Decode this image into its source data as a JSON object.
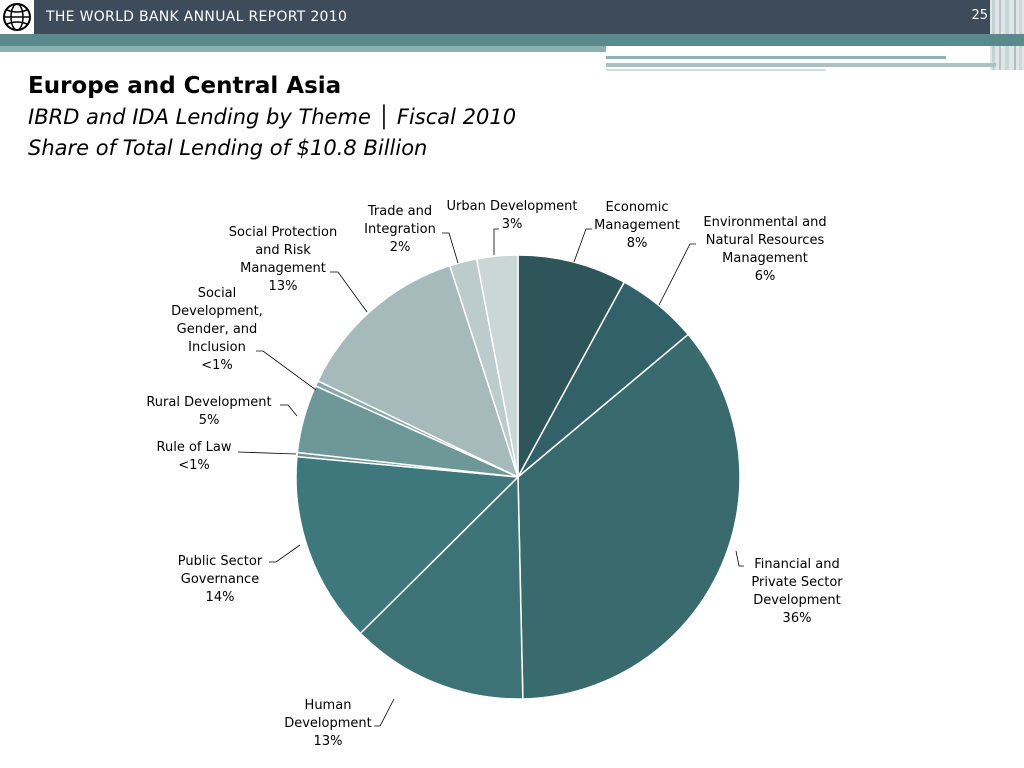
{
  "header": {
    "report_title": "THE WORLD BANK ANNUAL REPORT 2010",
    "page_number": "25",
    "bar_color": "#3d4b5a",
    "logo_icon": "world-bank-globe-icon"
  },
  "titles": {
    "line1": "Europe and Central Asia",
    "line2": "IBRD and IDA Lending by Theme │ Fiscal 2010",
    "line3": "Share of Total Lending of $10.8 Billion"
  },
  "chart_data": {
    "type": "pie",
    "title": "IBRD and IDA Lending by Theme │ Fiscal 2010",
    "total": "$10.8 Billion",
    "start_angle_deg": 0,
    "direction": "clockwise",
    "slices": [
      {
        "name": "Economic Management",
        "value": 8,
        "label_lines": [
          "Economic",
          "Management"
        ],
        "pct_label": "8%",
        "color": "#2e565a"
      },
      {
        "name": "Environmental and Natural Resources Management",
        "value": 6,
        "label_lines": [
          "Environmental and",
          "Natural Resources",
          "Management"
        ],
        "pct_label": "6%",
        "color": "#33616a"
      },
      {
        "name": "Financial and Private Sector Development",
        "value": 36,
        "label_lines": [
          "Financial and",
          "Private Sector",
          "Development"
        ],
        "pct_label": "36%",
        "color": "#386a6e"
      },
      {
        "name": "Human Development",
        "value": 13,
        "label_lines": [
          "Human",
          "Development"
        ],
        "pct_label": "13%",
        "color": "#3d7276"
      },
      {
        "name": "Public Sector Governance",
        "value": 14,
        "label_lines": [
          "Public Sector",
          "Governance"
        ],
        "pct_label": "14%",
        "color": "#3f787c"
      },
      {
        "name": "Rule of Law",
        "value": 0.3,
        "label_lines": [
          "Rule of Law"
        ],
        "pct_label": "<1%",
        "color": "#6b9597"
      },
      {
        "name": "Rural Development",
        "value": 5,
        "label_lines": [
          "Rural Development"
        ],
        "pct_label": "5%",
        "color": "#6e9798"
      },
      {
        "name": "Social Development, Gender, and Inclusion",
        "value": 0.4,
        "label_lines": [
          "Social",
          "Development,",
          "Gender, and",
          "Inclusion"
        ],
        "pct_label": "<1%",
        "color": "#88a8aa"
      },
      {
        "name": "Social Protection and Risk Management",
        "value": 13,
        "label_lines": [
          "Social Protection",
          "and Risk",
          "Management"
        ],
        "pct_label": "13%",
        "color": "#a6b9bb"
      },
      {
        "name": "Trade and Integration",
        "value": 2,
        "label_lines": [
          "Trade and",
          "Integration"
        ],
        "pct_label": "2%",
        "color": "#bccbcc"
      },
      {
        "name": "Urban Development",
        "value": 3,
        "label_lines": [
          "Urban Development"
        ],
        "pct_label": "3%",
        "color": "#cbd6d7"
      }
    ]
  }
}
